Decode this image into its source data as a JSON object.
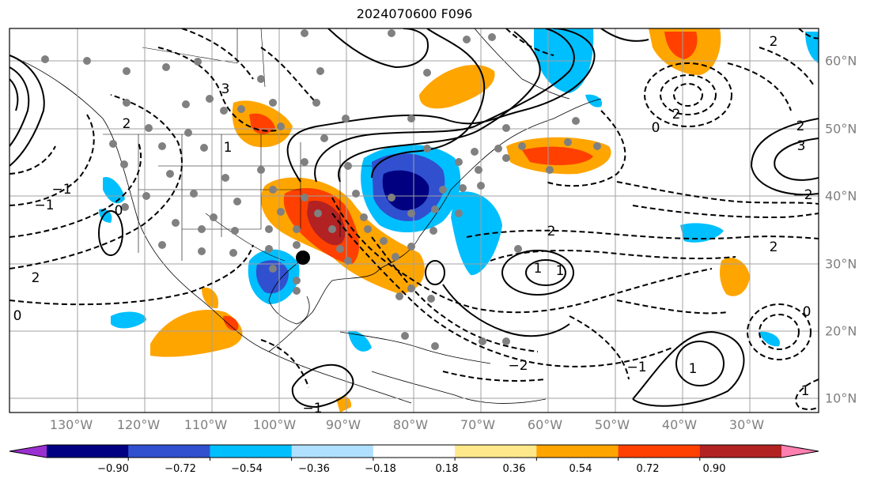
{
  "title": "2024070600 F096",
  "lon_labels": [
    "130°W",
    "120°W",
    "110°W",
    "100°W",
    "90°W",
    "80°W",
    "70°W",
    "60°W",
    "50°W",
    "40°W",
    "30°W"
  ],
  "lat_labels": [
    "60°N",
    "50°N",
    "40°N",
    "30°N",
    "20°N",
    "10°N"
  ],
  "colorbar": {
    "ticks": [
      "−0.90",
      "−0.72",
      "−0.54",
      "−0.36",
      "−0.18",
      "0.18",
      "0.36",
      "0.54",
      "0.72",
      "0.90"
    ],
    "colors": [
      "#9b30d0",
      "#000080",
      "#3050d0",
      "#00bfff",
      "#b0e0ff",
      "#ffffff",
      "#ffe88a",
      "#ffa500",
      "#ff4000",
      "#b22222",
      "#ff80b0"
    ]
  },
  "contour_labels": [
    "2",
    "1",
    "0",
    "−1",
    "2",
    "0",
    "3",
    "−1",
    "2",
    "2",
    "−2",
    "1",
    "0",
    "2",
    "−1",
    "3",
    "2",
    "2",
    "−2",
    "1",
    "1",
    "0",
    "−1",
    "1"
  ],
  "markers": {
    "station_color": "#808080",
    "highlight_color": "#000000"
  }
}
